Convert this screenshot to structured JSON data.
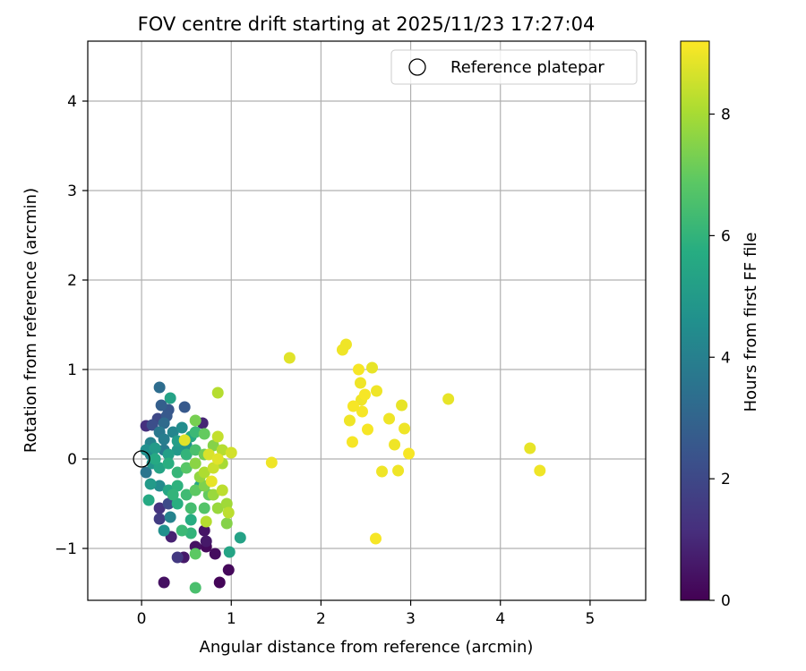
{
  "chart_data": {
    "type": "scatter",
    "title": "FOV centre drift starting at 2025/11/23 17:27:04",
    "xlabel": "Angular distance from reference (arcmin)",
    "ylabel": "Rotation from reference (arcmin)",
    "xlim": [
      -0.6,
      5.62
    ],
    "ylim": [
      -1.58,
      4.67
    ],
    "xticks": [
      0,
      1,
      2,
      3,
      4,
      5
    ],
    "yticks": [
      -1,
      0,
      1,
      2,
      3,
      4
    ],
    "xtick_labels": [
      "0",
      "1",
      "2",
      "3",
      "4",
      "5"
    ],
    "ytick_labels": [
      "−1",
      "0",
      "1",
      "2",
      "3",
      "4"
    ],
    "grid": true,
    "legend": {
      "label": "Reference platepar",
      "location": "top-right"
    },
    "reference_point": {
      "x": 0,
      "y": 0
    },
    "colorbar": {
      "label": "Hours from first FF file",
      "colormap": "viridis",
      "min": 0,
      "max": 9.2,
      "ticks": [
        0,
        2,
        4,
        6,
        8
      ],
      "tick_labels": [
        "0",
        "2",
        "4",
        "6",
        "8"
      ]
    },
    "points": [
      [
        0.2,
        0.8,
        3.3
      ],
      [
        0.3,
        0.55,
        2.5
      ],
      [
        0.22,
        0.6,
        2.8
      ],
      [
        0.48,
        0.58,
        2.6
      ],
      [
        0.32,
        0.68,
        5.3
      ],
      [
        0.25,
        0.4,
        3.2
      ],
      [
        0.05,
        0.37,
        1.2
      ],
      [
        0.12,
        0.38,
        2.2
      ],
      [
        0.68,
        0.4,
        0.9
      ],
      [
        0.1,
        0.18,
        4.1
      ],
      [
        0.2,
        0.3,
        3.7
      ],
      [
        0.35,
        0.3,
        4.2
      ],
      [
        0.45,
        0.35,
        4.5
      ],
      [
        0.55,
        0.25,
        5.6
      ],
      [
        0.6,
        0.3,
        6.2
      ],
      [
        0.7,
        0.28,
        7.0
      ],
      [
        0.05,
        0.1,
        4.6
      ],
      [
        0.1,
        0.05,
        4.3
      ],
      [
        0.15,
        0.12,
        5.0
      ],
      [
        0.25,
        0.1,
        3.8
      ],
      [
        0.3,
        0.05,
        5.2
      ],
      [
        0.4,
        0.1,
        4.9
      ],
      [
        0.5,
        0.05,
        6.0
      ],
      [
        0.6,
        0.1,
        6.5
      ],
      [
        0.7,
        0.05,
        7.2
      ],
      [
        0.8,
        0.15,
        7.5
      ],
      [
        0.9,
        0.1,
        8.2
      ],
      [
        1.0,
        0.07,
        8.6
      ],
      [
        0.05,
        -0.15,
        3.6
      ],
      [
        0.12,
        -0.05,
        4.8
      ],
      [
        0.2,
        -0.1,
        5.4
      ],
      [
        0.3,
        -0.05,
        5.8
      ],
      [
        0.4,
        -0.15,
        6.1
      ],
      [
        0.5,
        -0.1,
        6.8
      ],
      [
        0.6,
        -0.05,
        7.6
      ],
      [
        0.7,
        -0.15,
        8.1
      ],
      [
        0.8,
        -0.1,
        8.5
      ],
      [
        0.9,
        -0.05,
        8.0
      ],
      [
        0.1,
        -0.28,
        5.0
      ],
      [
        0.2,
        -0.3,
        4.4
      ],
      [
        0.3,
        -0.35,
        5.5
      ],
      [
        0.4,
        -0.3,
        5.9
      ],
      [
        0.5,
        -0.4,
        6.3
      ],
      [
        0.6,
        -0.35,
        6.9
      ],
      [
        0.7,
        -0.3,
        7.4
      ],
      [
        0.8,
        -0.4,
        7.8
      ],
      [
        0.9,
        -0.35,
        8.3
      ],
      [
        0.95,
        -0.5,
        7.9
      ],
      [
        0.08,
        -0.46,
        5.6
      ],
      [
        0.2,
        -0.55,
        1.3
      ],
      [
        0.3,
        -0.5,
        2.1
      ],
      [
        0.4,
        -0.5,
        5.8
      ],
      [
        0.55,
        -0.55,
        6.4
      ],
      [
        0.7,
        -0.55,
        6.7
      ],
      [
        0.85,
        -0.55,
        7.8
      ],
      [
        0.97,
        -0.6,
        8.3
      ],
      [
        0.2,
        -0.67,
        1.6
      ],
      [
        0.32,
        -0.65,
        4.1
      ],
      [
        0.55,
        -0.68,
        5.7
      ],
      [
        0.72,
        -0.7,
        8.2
      ],
      [
        0.95,
        -0.72,
        7.5
      ],
      [
        0.25,
        -0.8,
        4.6
      ],
      [
        0.33,
        -0.87,
        0.8
      ],
      [
        0.45,
        -0.8,
        6.2
      ],
      [
        0.7,
        -0.8,
        0.5
      ],
      [
        0.55,
        -0.83,
        6.0
      ],
      [
        0.6,
        -0.98,
        0.4
      ],
      [
        0.72,
        -0.92,
        0.6
      ],
      [
        0.72,
        -0.98,
        0.2
      ],
      [
        0.6,
        -1.06,
        6.9
      ],
      [
        0.82,
        -1.06,
        0.3
      ],
      [
        0.98,
        -1.04,
        5.4
      ],
      [
        0.4,
        -1.1,
        1.5
      ],
      [
        0.47,
        -1.1,
        0.6
      ],
      [
        0.97,
        -1.24,
        0.2
      ],
      [
        0.25,
        -1.38,
        0.4
      ],
      [
        0.87,
        -1.38,
        0.1
      ],
      [
        0.6,
        -1.44,
        6.5
      ],
      [
        1.1,
        -0.88,
        5.3
      ],
      [
        0.85,
        0.74,
        8.2
      ],
      [
        0.6,
        0.43,
        7.3
      ],
      [
        0.85,
        0.25,
        8.4
      ],
      [
        0.48,
        0.21,
        8.8
      ],
      [
        0.4,
        0.2,
        5.1
      ],
      [
        0.15,
        0.0,
        5.6
      ],
      [
        0.35,
        -0.4,
        6.0
      ],
      [
        0.65,
        -0.3,
        5.5
      ],
      [
        0.75,
        -0.4,
        7.0
      ],
      [
        0.5,
        0.15,
        4.7
      ],
      [
        0.25,
        0.22,
        3.9
      ],
      [
        0.18,
        0.45,
        2.0
      ],
      [
        0.28,
        0.48,
        2.6
      ],
      [
        0.75,
        0.05,
        8.7
      ],
      [
        0.85,
        0.0,
        8.8
      ],
      [
        0.65,
        -0.2,
        7.7
      ],
      [
        0.78,
        -0.25,
        8.9
      ],
      [
        1.45,
        -0.04,
        9.0
      ],
      [
        1.65,
        1.13,
        8.8
      ],
      [
        2.28,
        1.28,
        9.0
      ],
      [
        2.24,
        1.22,
        9.0
      ],
      [
        2.42,
        1.0,
        9.1
      ],
      [
        2.57,
        1.02,
        8.9
      ],
      [
        2.44,
        0.85,
        9.0
      ],
      [
        2.49,
        0.72,
        9.1
      ],
      [
        2.62,
        0.76,
        9.0
      ],
      [
        2.45,
        0.66,
        9.0
      ],
      [
        2.36,
        0.59,
        9.1
      ],
      [
        2.9,
        0.6,
        8.9
      ],
      [
        2.46,
        0.53,
        9.1
      ],
      [
        2.76,
        0.45,
        9.0
      ],
      [
        2.32,
        0.43,
        9.0
      ],
      [
        2.93,
        0.34,
        9.0
      ],
      [
        2.52,
        0.33,
        9.1
      ],
      [
        2.82,
        0.16,
        9.0
      ],
      [
        2.35,
        0.19,
        9.1
      ],
      [
        2.98,
        0.06,
        9.1
      ],
      [
        2.68,
        -0.14,
        9.0
      ],
      [
        2.86,
        -0.13,
        9.0
      ],
      [
        2.61,
        -0.89,
        9.1
      ],
      [
        3.42,
        0.67,
        8.9
      ],
      [
        4.33,
        0.12,
        8.9
      ],
      [
        4.44,
        -0.13,
        9.0
      ]
    ]
  }
}
